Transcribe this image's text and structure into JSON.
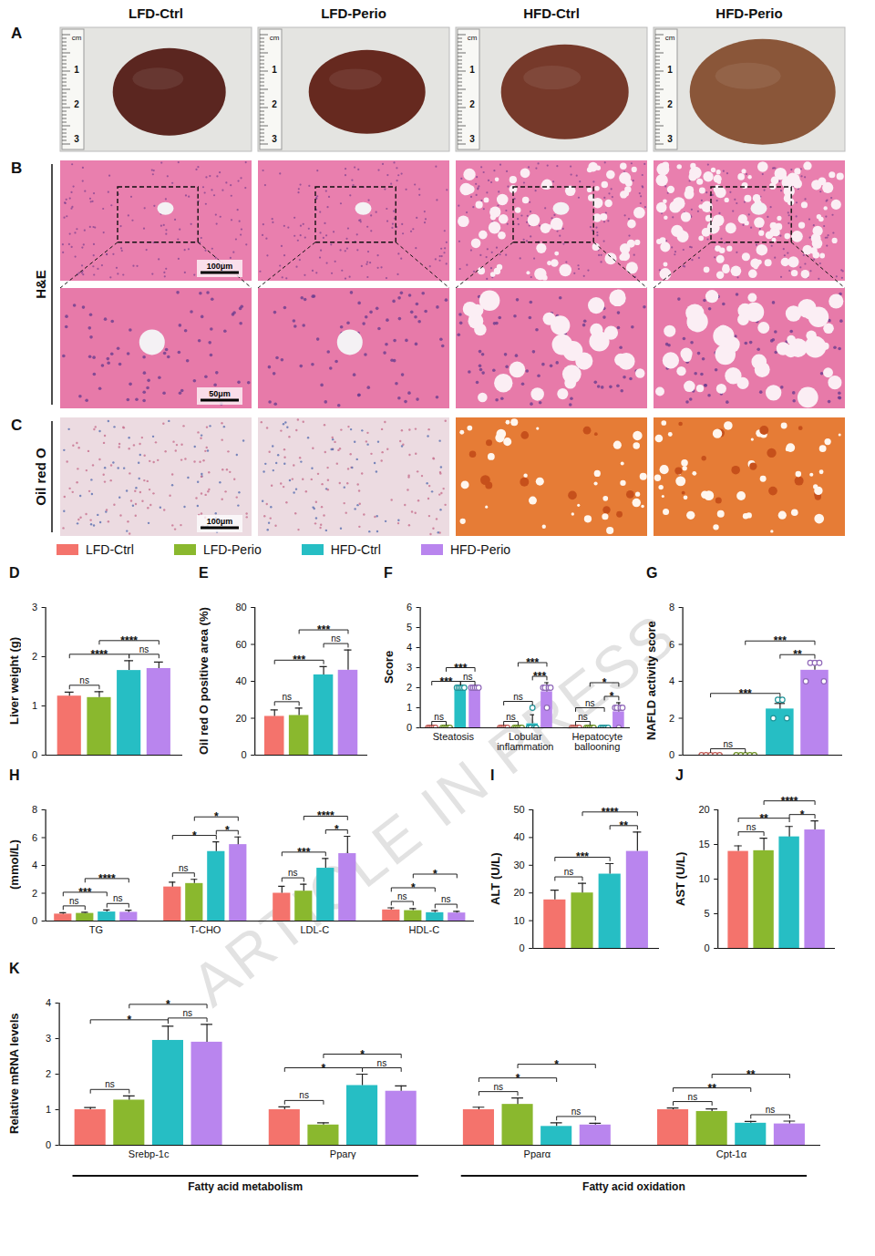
{
  "watermark": "ARTICLE IN PRESS",
  "legend": "top",
  "series": [
    {
      "name": "LFD-Ctrl",
      "color": "#f4736c"
    },
    {
      "name": "LFD-Perio",
      "color": "#8ab82e"
    },
    {
      "name": "HFD-Ctrl",
      "color": "#26bec4"
    },
    {
      "name": "HFD-Perio",
      "color": "#b985ee"
    }
  ],
  "images": {
    "columns": [
      "LFD-Ctrl",
      "LFD-Perio",
      "HFD-Ctrl",
      "HFD-Perio"
    ],
    "panels": [
      {
        "panel": "A",
        "ruler": {
          "unit": "cm",
          "ticks": [
            1,
            2,
            3
          ]
        }
      },
      {
        "panel": "B",
        "row_label": "H&E",
        "scale_bars": [
          "100μm",
          "50μm"
        ]
      },
      {
        "panel": "C",
        "row_label": "Oil red O",
        "scale_bars": [
          "100μm"
        ]
      }
    ]
  },
  "chart_data": [
    {
      "panel": "D",
      "type": "bar",
      "ylabel": "Liver weight (g)",
      "categories": [
        null
      ],
      "tick_labels": "y",
      "values": [
        [
          1.2
        ],
        [
          1.17
        ],
        [
          1.72
        ],
        [
          1.76
        ]
      ],
      "errors": [
        [
          0.08
        ],
        [
          0.12
        ],
        [
          0.2
        ],
        [
          0.13
        ]
      ],
      "ylim": [
        0,
        3
      ],
      "yticks": [
        0,
        1,
        2,
        3
      ],
      "comparisons": [
        {
          "category": 0,
          "from": 0,
          "to": 1,
          "label": "ns"
        },
        {
          "category": 0,
          "from": 0,
          "to": 2,
          "label": "****"
        },
        {
          "category": 0,
          "from": 2,
          "to": 3,
          "label": "ns"
        },
        {
          "category": 0,
          "from": 1,
          "to": 3,
          "label": "****"
        }
      ]
    },
    {
      "panel": "E",
      "type": "bar",
      "ylabel": "Oil red O positive area (%)",
      "categories": [
        null
      ],
      "tick_labels": "y",
      "values": [
        [
          21
        ],
        [
          21.5
        ],
        [
          43.5
        ],
        [
          46
        ]
      ],
      "errors": [
        [
          3.5
        ],
        [
          4
        ],
        [
          4.5
        ],
        [
          11
        ]
      ],
      "ylim": [
        0,
        80
      ],
      "yticks": [
        0,
        20,
        40,
        60,
        80
      ],
      "comparisons": [
        {
          "category": 0,
          "from": 0,
          "to": 1,
          "label": "ns"
        },
        {
          "category": 0,
          "from": 0,
          "to": 2,
          "label": "***"
        },
        {
          "category": 0,
          "from": 2,
          "to": 3,
          "label": "ns"
        },
        {
          "category": 0,
          "from": 1,
          "to": 3,
          "label": "***"
        }
      ]
    },
    {
      "panel": "F",
      "type": "bar",
      "ylabel": "Score",
      "categories": [
        "Steatosis",
        "Lobular inflammation",
        "Hepatocyte ballooning"
      ],
      "values": [
        [
          0,
          0,
          0
        ],
        [
          0,
          0,
          0
        ],
        [
          2,
          0.2,
          0
        ],
        [
          2,
          1.8,
          0.8
        ]
      ],
      "errors": [
        [
          0,
          0,
          0
        ],
        [
          0,
          0,
          0
        ],
        [
          0,
          0.45,
          0
        ],
        [
          0,
          0.45,
          0.45
        ]
      ],
      "points": [
        [
          [
            0,
            0,
            0,
            0,
            0
          ],
          [
            0,
            0,
            0,
            0,
            0
          ],
          [
            0,
            0,
            0,
            0,
            0
          ]
        ],
        [
          [
            0,
            0,
            0,
            0,
            0
          ],
          [
            0,
            0,
            0,
            0,
            0
          ],
          [
            0,
            0,
            0,
            0,
            0
          ]
        ],
        [
          [
            2,
            2,
            2,
            2,
            2
          ],
          [
            0,
            0,
            1,
            0,
            0
          ],
          [
            0,
            0,
            0,
            0,
            0
          ]
        ],
        [
          [
            2,
            2,
            2,
            2,
            2
          ],
          [
            2,
            2,
            1,
            2,
            2
          ],
          [
            1,
            1,
            0,
            1,
            1
          ]
        ]
      ],
      "ylim": [
        0,
        6
      ],
      "yticks": [
        0,
        1,
        2,
        3,
        4,
        5,
        6
      ],
      "comparisons": [
        {
          "category": 0,
          "from": 0,
          "to": 1,
          "label": "ns"
        },
        {
          "category": 0,
          "from": 0,
          "to": 2,
          "label": "***"
        },
        {
          "category": 0,
          "from": 2,
          "to": 3,
          "label": "ns"
        },
        {
          "category": 0,
          "from": 1,
          "to": 3,
          "label": "***"
        },
        {
          "category": 1,
          "from": 0,
          "to": 1,
          "label": "ns"
        },
        {
          "category": 1,
          "from": 0,
          "to": 2,
          "label": "ns"
        },
        {
          "category": 1,
          "from": 2,
          "to": 3,
          "label": "***"
        },
        {
          "category": 1,
          "from": 1,
          "to": 3,
          "label": "***"
        },
        {
          "category": 2,
          "from": 0,
          "to": 1,
          "label": "ns"
        },
        {
          "category": 2,
          "from": 0,
          "to": 2,
          "label": "ns"
        },
        {
          "category": 2,
          "from": 2,
          "to": 3,
          "label": "*"
        },
        {
          "category": 2,
          "from": 1,
          "to": 3,
          "label": "*"
        }
      ]
    },
    {
      "panel": "G",
      "type": "bar",
      "ylabel": "NAFLD activity score",
      "categories": [
        null
      ],
      "tick_labels": "y",
      "values": [
        [
          0
        ],
        [
          0
        ],
        [
          2.5
        ],
        [
          4.6
        ]
      ],
      "errors": [
        [
          0
        ],
        [
          0
        ],
        [
          0.3
        ],
        [
          0.5
        ]
      ],
      "points": [
        [
          [
            0,
            0,
            0,
            0,
            0
          ]
        ],
        [
          [
            0,
            0,
            0,
            0,
            0
          ]
        ],
        [
          [
            2,
            3,
            3,
            2
          ]
        ],
        [
          [
            4,
            5,
            5,
            5,
            4
          ]
        ]
      ],
      "ylim": [
        0,
        8
      ],
      "yticks": [
        0,
        2,
        4,
        6,
        8
      ],
      "comparisons": [
        {
          "category": 0,
          "from": 0,
          "to": 1,
          "label": "ns"
        },
        {
          "category": 0,
          "from": 0,
          "to": 2,
          "label": "***"
        },
        {
          "category": 0,
          "from": 2,
          "to": 3,
          "label": "**"
        },
        {
          "category": 0,
          "from": 1,
          "to": 3,
          "label": "***"
        }
      ]
    },
    {
      "panel": "H",
      "type": "bar",
      "ylabel": "(mmol/L)",
      "categories": [
        "TG",
        "T-CHO",
        "LDL-C",
        "HDL-C"
      ],
      "values": [
        [
          0.5,
          2.45,
          2.0,
          0.8
        ],
        [
          0.55,
          2.7,
          2.15,
          0.75
        ],
        [
          0.65,
          5.0,
          3.8,
          0.6
        ],
        [
          0.63,
          5.5,
          4.85,
          0.58
        ]
      ],
      "errors": [
        [
          0.1,
          0.35,
          0.5,
          0.15
        ],
        [
          0.08,
          0.3,
          0.5,
          0.15
        ],
        [
          0.15,
          0.7,
          0.7,
          0.15
        ],
        [
          0.15,
          0.55,
          1.25,
          0.12
        ]
      ],
      "ylim": [
        0,
        8
      ],
      "yticks": [
        0,
        2,
        4,
        6,
        8
      ],
      "comparisons": [
        {
          "category": 0,
          "from": 0,
          "to": 1,
          "label": "ns"
        },
        {
          "category": 0,
          "from": 0,
          "to": 2,
          "label": "***"
        },
        {
          "category": 0,
          "from": 2,
          "to": 3,
          "label": "ns"
        },
        {
          "category": 0,
          "from": 1,
          "to": 3,
          "label": "****"
        },
        {
          "category": 1,
          "from": 0,
          "to": 1,
          "label": "ns"
        },
        {
          "category": 1,
          "from": 0,
          "to": 2,
          "label": "*"
        },
        {
          "category": 1,
          "from": 2,
          "to": 3,
          "label": "*"
        },
        {
          "category": 1,
          "from": 1,
          "to": 3,
          "label": "*"
        },
        {
          "category": 2,
          "from": 0,
          "to": 1,
          "label": "ns"
        },
        {
          "category": 2,
          "from": 0,
          "to": 2,
          "label": "***"
        },
        {
          "category": 2,
          "from": 2,
          "to": 3,
          "label": "*"
        },
        {
          "category": 2,
          "from": 1,
          "to": 3,
          "label": "****"
        },
        {
          "category": 3,
          "from": 0,
          "to": 1,
          "label": "ns"
        },
        {
          "category": 3,
          "from": 0,
          "to": 2,
          "label": "*"
        },
        {
          "category": 3,
          "from": 2,
          "to": 3,
          "label": "ns"
        },
        {
          "category": 3,
          "from": 1,
          "to": 3,
          "label": "*"
        }
      ]
    },
    {
      "panel": "I",
      "type": "bar",
      "ylabel": "ALT (U/L)",
      "categories": [
        null
      ],
      "tick_labels": "y",
      "values": [
        [
          17.5
        ],
        [
          20
        ],
        [
          26.8
        ],
        [
          35
        ]
      ],
      "errors": [
        [
          3.5
        ],
        [
          3.5
        ],
        [
          3.8
        ],
        [
          7
        ]
      ],
      "ylim": [
        0,
        50
      ],
      "yticks": [
        0,
        10,
        20,
        30,
        40,
        50
      ],
      "comparisons": [
        {
          "category": 0,
          "from": 0,
          "to": 1,
          "label": "ns"
        },
        {
          "category": 0,
          "from": 0,
          "to": 2,
          "label": "***"
        },
        {
          "category": 0,
          "from": 2,
          "to": 3,
          "label": "**"
        },
        {
          "category": 0,
          "from": 1,
          "to": 3,
          "label": "****"
        }
      ]
    },
    {
      "panel": "J",
      "type": "bar",
      "ylabel": "AST (U/L)",
      "categories": [
        null
      ],
      "tick_labels": "y",
      "values": [
        [
          14
        ],
        [
          14.1
        ],
        [
          16.1
        ],
        [
          17.1
        ]
      ],
      "errors": [
        [
          0.8
        ],
        [
          1.8
        ],
        [
          1.5
        ],
        [
          1.3
        ]
      ],
      "ylim": [
        0,
        20
      ],
      "yticks": [
        0,
        5,
        10,
        15,
        20
      ],
      "comparisons": [
        {
          "category": 0,
          "from": 0,
          "to": 1,
          "label": "ns"
        },
        {
          "category": 0,
          "from": 0,
          "to": 2,
          "label": "**"
        },
        {
          "category": 0,
          "from": 2,
          "to": 3,
          "label": "*"
        },
        {
          "category": 0,
          "from": 1,
          "to": 3,
          "label": "****"
        }
      ]
    },
    {
      "panel": "K",
      "type": "bar",
      "ylabel": "Relative mRNA levels",
      "categories": [
        "Srebp-1c",
        "Pparγ",
        "Pparα",
        "Cpt-1α"
      ],
      "values": [
        [
          1.0,
          1.0,
          1.0,
          1.0
        ],
        [
          1.27,
          0.57,
          1.15,
          0.95
        ],
        [
          2.95,
          1.68,
          0.53,
          0.62
        ],
        [
          2.9,
          1.52,
          0.57,
          0.6
        ]
      ],
      "errors": [
        [
          0.06,
          0.08,
          0.07,
          0.05
        ],
        [
          0.12,
          0.06,
          0.18,
          0.07
        ],
        [
          0.4,
          0.32,
          0.1,
          0.05
        ],
        [
          0.5,
          0.15,
          0.05,
          0.08
        ]
      ],
      "ylim": [
        0,
        4
      ],
      "yticks": [
        0,
        1,
        2,
        3,
        4
      ],
      "group_spans": [
        {
          "label": "Fatty acid metabolism",
          "from": 0,
          "to": 1
        },
        {
          "label": "Fatty acid oxidation",
          "from": 2,
          "to": 3
        }
      ],
      "comparisons": [
        {
          "category": 0,
          "from": 0,
          "to": 1,
          "label": "ns"
        },
        {
          "category": 0,
          "from": 0,
          "to": 2,
          "label": "*"
        },
        {
          "category": 0,
          "from": 2,
          "to": 3,
          "label": "ns"
        },
        {
          "category": 0,
          "from": 1,
          "to": 3,
          "label": "*"
        },
        {
          "category": 1,
          "from": 0,
          "to": 1,
          "label": "ns"
        },
        {
          "category": 1,
          "from": 0,
          "to": 2,
          "label": "*"
        },
        {
          "category": 1,
          "from": 2,
          "to": 3,
          "label": "ns"
        },
        {
          "category": 1,
          "from": 1,
          "to": 3,
          "label": "*"
        },
        {
          "category": 2,
          "from": 0,
          "to": 1,
          "label": "ns"
        },
        {
          "category": 2,
          "from": 0,
          "to": 2,
          "label": "*"
        },
        {
          "category": 2,
          "from": 2,
          "to": 3,
          "label": "ns"
        },
        {
          "category": 2,
          "from": 1,
          "to": 3,
          "label": "*"
        },
        {
          "category": 3,
          "from": 0,
          "to": 1,
          "label": "ns"
        },
        {
          "category": 3,
          "from": 0,
          "to": 2,
          "label": "**"
        },
        {
          "category": 3,
          "from": 2,
          "to": 3,
          "label": "ns"
        },
        {
          "category": 3,
          "from": 1,
          "to": 3,
          "label": "**"
        }
      ]
    }
  ]
}
